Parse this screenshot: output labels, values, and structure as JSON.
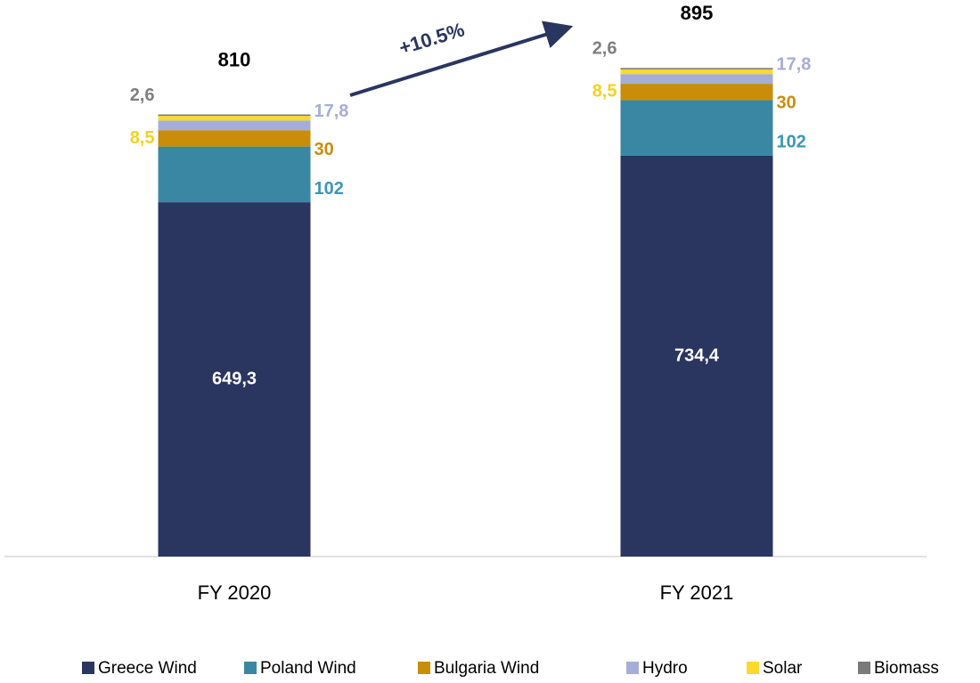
{
  "chart_data": {
    "type": "stacked_bar",
    "categories": [
      "FY 2020",
      "FY 2021"
    ],
    "series": [
      {
        "name": "Greece Wind",
        "color": "#2a3560",
        "values": [
          649.3,
          734.4
        ],
        "value_labels": [
          "649,3",
          "734,4"
        ]
      },
      {
        "name": "Poland Wind",
        "color": "#3a87a3",
        "values": [
          102,
          102
        ]
      },
      {
        "name": "Bulgaria Wind",
        "color": "#c98d0a",
        "values": [
          30,
          30
        ]
      },
      {
        "name": "Hydro",
        "color": "#a5aed6",
        "values": [
          17.8,
          17.8
        ],
        "value_labels": [
          "17,8",
          "17,8"
        ]
      },
      {
        "name": "Solar",
        "color": "#fcd92b",
        "values": [
          8.5,
          8.5
        ],
        "value_labels": [
          "8,5",
          "8,5"
        ]
      },
      {
        "name": "Biomass",
        "color": "#7a7a7a",
        "values": [
          2.6,
          2.6
        ],
        "value_labels": [
          "2,6",
          "2,6"
        ]
      }
    ],
    "totals": [
      810,
      895
    ],
    "annotation": "+10.5%",
    "legend": "bottom"
  }
}
